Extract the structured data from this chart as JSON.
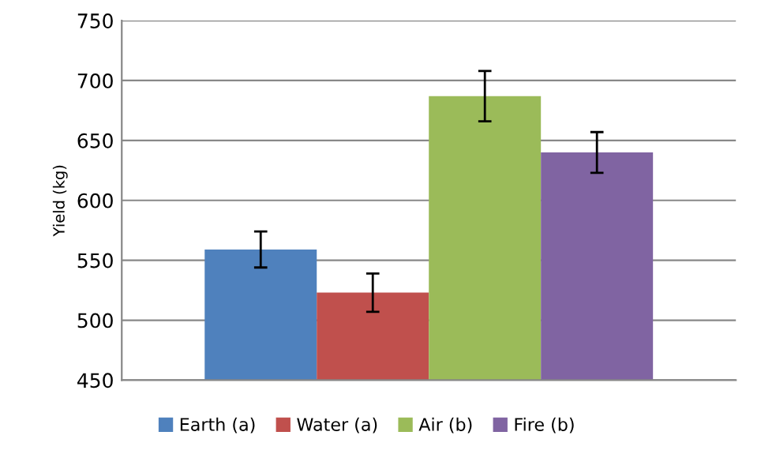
{
  "chart_data": {
    "type": "bar",
    "ylabel": "Yield (kg)",
    "categories": [
      null
    ],
    "series": [
      {
        "name": "Earth (a)",
        "color": "#4f81bd",
        "values": [
          559
        ],
        "errors": [
          15
        ]
      },
      {
        "name": "Water (a)",
        "color": "#c0504d",
        "values": [
          523
        ],
        "errors": [
          16
        ]
      },
      {
        "name": "Air (b)",
        "color": "#9bbb59",
        "values": [
          687
        ],
        "errors": [
          21
        ]
      },
      {
        "name": "Fire (b)",
        "color": "#8064a2",
        "values": [
          640
        ],
        "errors": [
          17
        ]
      }
    ],
    "ylim": [
      450,
      750
    ],
    "yticks": [
      450,
      500,
      550,
      600,
      650,
      700,
      750
    ],
    "grid": "y",
    "legend": "bottom"
  }
}
